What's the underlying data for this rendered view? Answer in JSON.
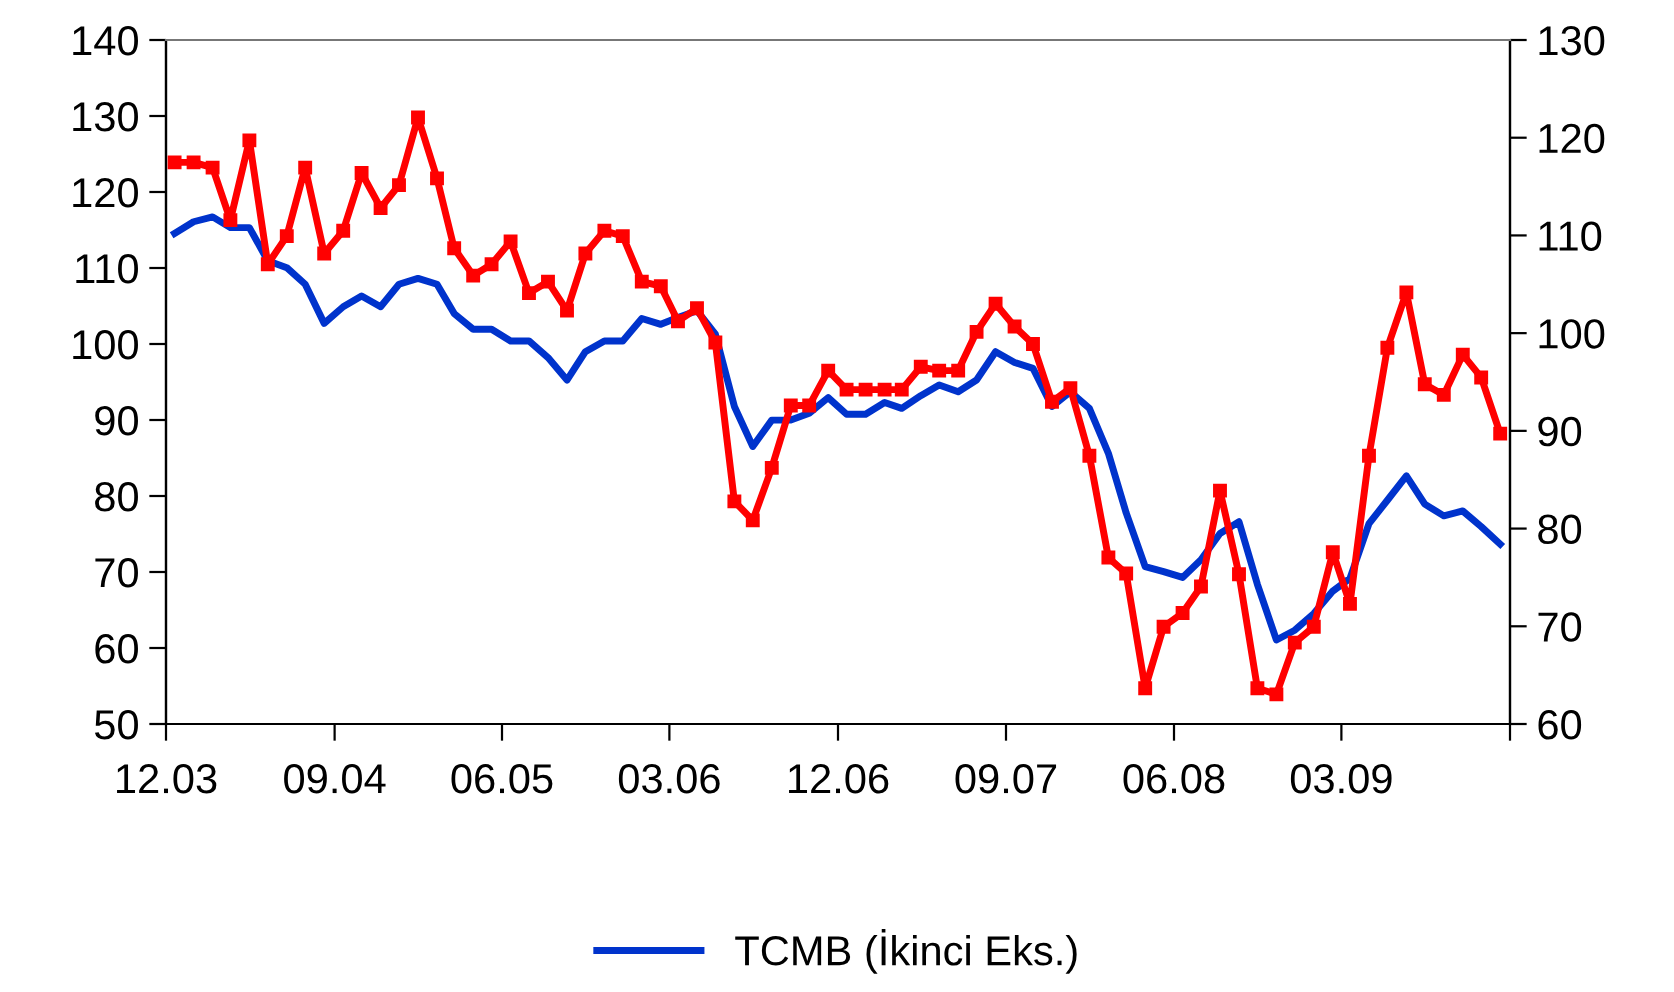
{
  "chart_data": {
    "type": "line",
    "x": [
      "2003-12-15",
      "2004-01-15",
      "2004-02-15",
      "2004-03-15",
      "2004-04-15",
      "2004-05-15",
      "2004-06-15",
      "2004-07-15",
      "2004-08-15",
      "2004-09-15",
      "2004-10-15",
      "2004-11-15",
      "2004-12-15",
      "2005-01-15",
      "2005-02-15",
      "2005-03-15",
      "2005-04-15",
      "2005-05-15",
      "2005-06-15",
      "2005-07-15",
      "2005-08-15",
      "2005-09-15",
      "2005-10-15",
      "2005-11-15",
      "2005-12-15",
      "2006-01-15",
      "2006-02-15",
      "2006-03-15",
      "2006-04-15",
      "2006-05-15",
      "2006-06-15",
      "2006-07-15",
      "2006-08-15",
      "2006-09-15",
      "2006-10-15",
      "2006-11-15",
      "2006-12-15",
      "2007-01-15",
      "2007-02-15",
      "2007-03-15",
      "2007-04-15",
      "2007-05-15",
      "2007-06-15",
      "2007-07-15",
      "2007-08-15",
      "2007-09-15",
      "2007-10-15",
      "2007-11-15",
      "2007-12-15",
      "2008-01-15",
      "2008-02-15",
      "2008-03-15",
      "2008-04-15",
      "2008-05-15",
      "2008-06-15",
      "2008-07-15",
      "2008-08-15",
      "2008-09-15",
      "2008-10-15",
      "2008-11-15",
      "2008-12-15",
      "2009-01-15",
      "2009-02-15",
      "2009-03-15",
      "2009-04-15",
      "2009-05-15",
      "2009-06-15",
      "2009-07-15",
      "2009-08-15",
      "2009-09-15",
      "2009-10-15",
      "2009-11-15"
    ],
    "series": [
      {
        "color": "#ff0000",
        "marker": "square",
        "values": [
          123.9,
          123.9,
          123.2,
          116.3,
          126.8,
          110.5,
          114.2,
          123.2,
          111.9,
          114.9,
          122.5,
          117.9,
          120.9,
          129.8,
          121.8,
          112.6,
          109.0,
          110.5,
          113.5,
          106.7,
          108.2,
          104.4,
          111.9,
          114.9,
          114.2,
          108.2,
          107.6,
          103.0,
          104.7,
          100.2,
          79.3,
          76.8,
          83.7,
          91.9,
          91.9,
          96.5,
          94.0,
          94.0,
          94.0,
          94.0,
          97.0,
          96.5,
          96.5,
          101.6,
          105.3,
          102.3,
          100.0,
          92.4,
          94.2,
          85.3,
          71.9,
          69.8,
          54.7,
          62.8,
          64.6,
          68.1,
          80.7,
          69.7,
          54.7,
          53.9,
          60.7,
          62.8,
          72.6,
          65.8,
          85.3,
          99.5,
          106.8,
          94.7,
          93.3,
          98.6,
          95.6,
          88.2
        ]
      },
      {
        "name": "TCMB (İkinci Eks.)",
        "color": "#0033cc",
        "axis": "y2",
        "marker": "none",
        "values": [
          110.2,
          111.4,
          111.9,
          110.8,
          110.8,
          107.4,
          106.7,
          105.0,
          101.0,
          102.7,
          103.8,
          102.7,
          105.0,
          105.6,
          105.0,
          102.0,
          100.4,
          100.4,
          99.2,
          99.2,
          97.5,
          95.2,
          98.1,
          99.2,
          99.2,
          101.5,
          100.9,
          101.6,
          102.3,
          99.9,
          92.5,
          88.4,
          91.1,
          91.1,
          91.8,
          93.4,
          91.7,
          91.7,
          92.9,
          92.3,
          93.6,
          94.7,
          94.0,
          95.2,
          98.1,
          97.0,
          96.4,
          92.5,
          94.0,
          92.3,
          87.7,
          81.6,
          76.1,
          75.6,
          75.0,
          76.8,
          79.5,
          80.7,
          74.3,
          68.6,
          69.6,
          71.3,
          73.6,
          74.9,
          80.5,
          82.9,
          85.4,
          82.5,
          81.3,
          81.8,
          80.2,
          78.4
        ]
      }
    ],
    "xlim": [
      "2003-12-01",
      "2009-12-01"
    ],
    "xticks": [
      {
        "value": "2003-12-01",
        "label": "12.03"
      },
      {
        "value": "2004-09-01",
        "label": "09.04"
      },
      {
        "value": "2005-06-01",
        "label": "06.05"
      },
      {
        "value": "2006-03-01",
        "label": "03.06"
      },
      {
        "value": "2006-12-01",
        "label": "12.06"
      },
      {
        "value": "2007-09-01",
        "label": "09.07"
      },
      {
        "value": "2008-06-01",
        "label": "06.08"
      },
      {
        "value": "2009-03-01",
        "label": "03.09"
      },
      {
        "value": "2009-12-01",
        "label": null
      }
    ],
    "ylim": [
      50,
      140
    ],
    "yticks": [
      50,
      60,
      70,
      80,
      90,
      100,
      110,
      120,
      130,
      140
    ],
    "y2lim": [
      60,
      130
    ],
    "y2ticks": [
      60,
      70,
      80,
      90,
      100,
      110,
      120,
      130
    ],
    "grid": false,
    "legend": "bottom",
    "line_style": "solid"
  }
}
